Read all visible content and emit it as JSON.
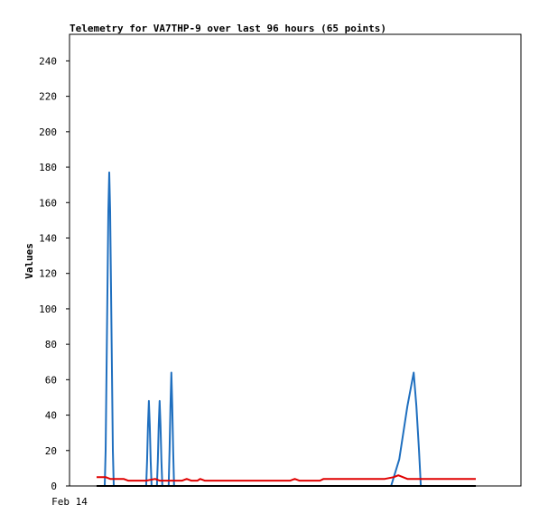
{
  "chart_data": {
    "type": "line",
    "title": "Telemetry for VA7THP-9 over last 96 hours (65 points)",
    "ylabel": "Values",
    "xlabel": "",
    "ylim": [
      0,
      255
    ],
    "y_ticks": [
      0,
      20,
      40,
      60,
      80,
      100,
      120,
      140,
      160,
      180,
      200,
      220,
      240
    ],
    "x_tick_labels": [
      "Feb 14"
    ],
    "grid": false,
    "series": [
      {
        "color": "#1f6fbf",
        "points": [
          [
            0,
            0
          ],
          [
            9,
            0
          ],
          [
            10,
            20
          ],
          [
            11,
            65
          ],
          [
            12,
            110
          ],
          [
            13,
            155
          ],
          [
            14,
            177
          ],
          [
            15,
            155
          ],
          [
            16,
            110
          ],
          [
            17,
            65
          ],
          [
            18,
            20
          ],
          [
            19,
            0
          ],
          [
            55,
            0
          ],
          [
            56,
            14
          ],
          [
            57,
            34
          ],
          [
            58,
            48
          ],
          [
            59,
            34
          ],
          [
            60,
            14
          ],
          [
            61,
            0
          ],
          [
            67,
            0
          ],
          [
            68,
            14
          ],
          [
            69,
            34
          ],
          [
            70,
            48
          ],
          [
            71,
            34
          ],
          [
            72,
            14
          ],
          [
            73,
            0
          ],
          [
            80,
            0
          ],
          [
            81,
            20
          ],
          [
            82,
            45
          ],
          [
            83,
            64
          ],
          [
            84,
            45
          ],
          [
            85,
            20
          ],
          [
            86,
            0
          ],
          [
            327,
            0
          ],
          [
            336,
            15
          ],
          [
            345,
            45
          ],
          [
            352,
            64
          ],
          [
            355,
            45
          ],
          [
            358,
            20
          ],
          [
            360,
            0
          ],
          [
            421,
            0
          ]
        ]
      },
      {
        "color": "#e00000",
        "points": [
          [
            0,
            5
          ],
          [
            10,
            5
          ],
          [
            15,
            4
          ],
          [
            30,
            4
          ],
          [
            35,
            3
          ],
          [
            55,
            3
          ],
          [
            65,
            4
          ],
          [
            70,
            3
          ],
          [
            95,
            3
          ],
          [
            100,
            4
          ],
          [
            105,
            3
          ],
          [
            112,
            3
          ],
          [
            115,
            4
          ],
          [
            120,
            3
          ],
          [
            215,
            3
          ],
          [
            220,
            4
          ],
          [
            225,
            3
          ],
          [
            248,
            3
          ],
          [
            252,
            4
          ],
          [
            310,
            4
          ],
          [
            320,
            4
          ],
          [
            330,
            5
          ],
          [
            335,
            6
          ],
          [
            340,
            5
          ],
          [
            345,
            4
          ],
          [
            421,
            4
          ]
        ]
      },
      {
        "color": "#000000",
        "points": [
          [
            0,
            0
          ],
          [
            421,
            0
          ]
        ]
      }
    ]
  }
}
